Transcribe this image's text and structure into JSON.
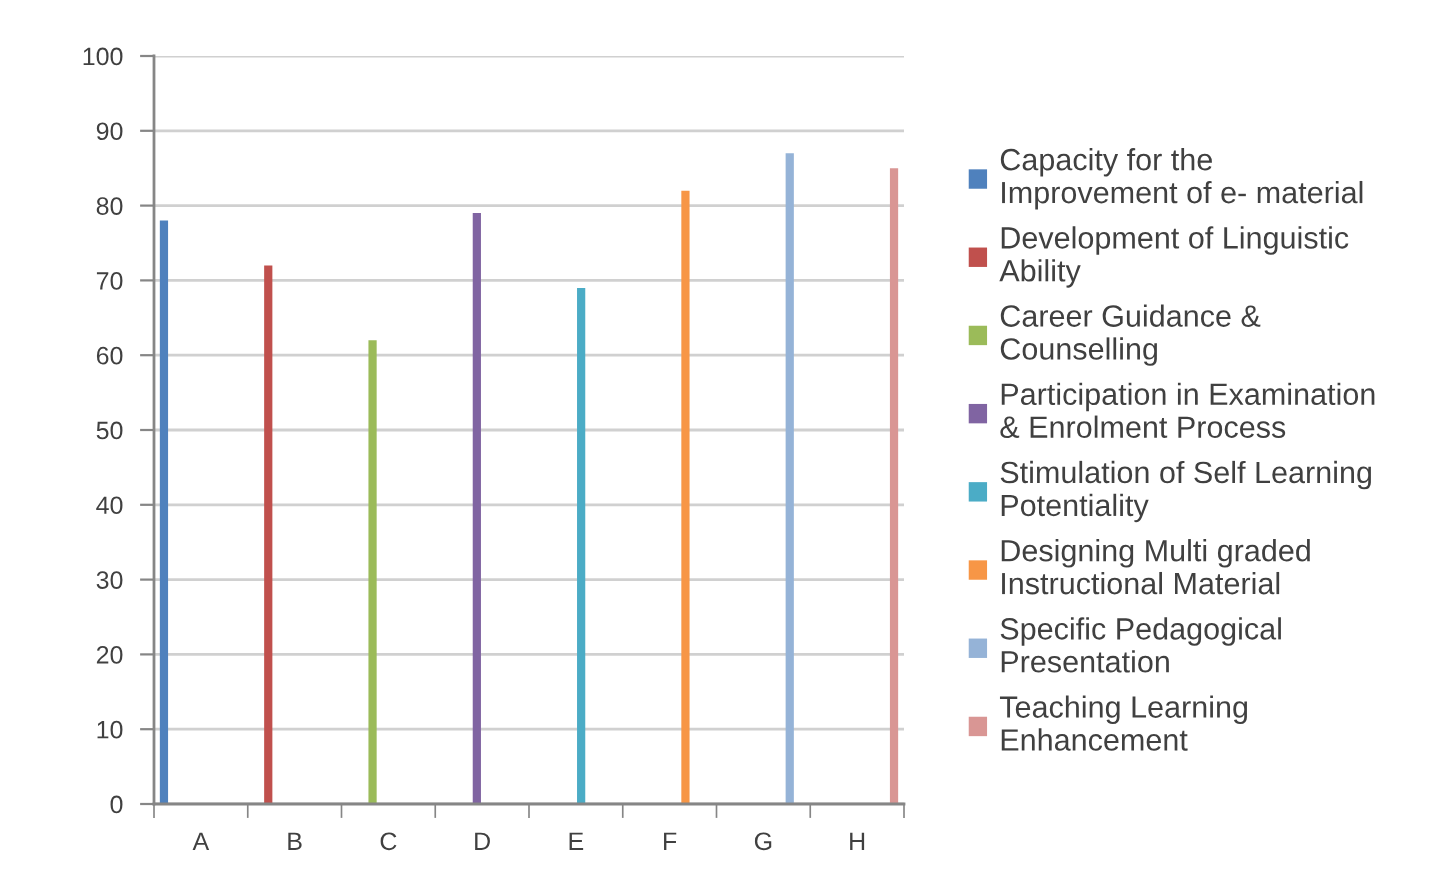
{
  "chart_data": {
    "type": "bar",
    "categories": [
      "A",
      "B",
      "C",
      "D",
      "E",
      "F",
      "G",
      "H"
    ],
    "series": [
      {
        "name": "Capacity for the Improvement of e- material",
        "color": "#4f81bd",
        "values": [
          78,
          null,
          null,
          null,
          null,
          null,
          null,
          null
        ]
      },
      {
        "name": "Development of Linguistic Ability",
        "color": "#c0504d",
        "values": [
          null,
          72,
          null,
          null,
          null,
          null,
          null,
          null
        ]
      },
      {
        "name": "Career Guidance & Counselling",
        "color": "#9bbb59",
        "values": [
          null,
          null,
          62,
          null,
          null,
          null,
          null,
          null
        ]
      },
      {
        "name": "Participation in Examination & Enrolment Process",
        "color": "#8064a2",
        "values": [
          null,
          null,
          null,
          79,
          null,
          null,
          null,
          null
        ]
      },
      {
        "name": "Stimulation of Self Learning Potentiality",
        "color": "#4bacc6",
        "values": [
          null,
          null,
          null,
          null,
          69,
          null,
          null,
          null
        ]
      },
      {
        "name": "Designing Multi graded Instructional Material",
        "color": "#f79646",
        "values": [
          null,
          null,
          null,
          null,
          null,
          82,
          null,
          null
        ]
      },
      {
        "name": "Specific Pedagogical Presentation",
        "color": "#95b3d7",
        "values": [
          null,
          null,
          null,
          null,
          null,
          null,
          87,
          null
        ]
      },
      {
        "name": "Teaching Learning Enhancement",
        "color": "#d99694",
        "values": [
          null,
          null,
          null,
          null,
          null,
          null,
          null,
          85
        ]
      }
    ],
    "ylim": [
      0,
      100
    ],
    "yticks": [
      0,
      10,
      20,
      30,
      40,
      50,
      60,
      70,
      80,
      90,
      100
    ],
    "grid": "y",
    "legend": "right"
  }
}
